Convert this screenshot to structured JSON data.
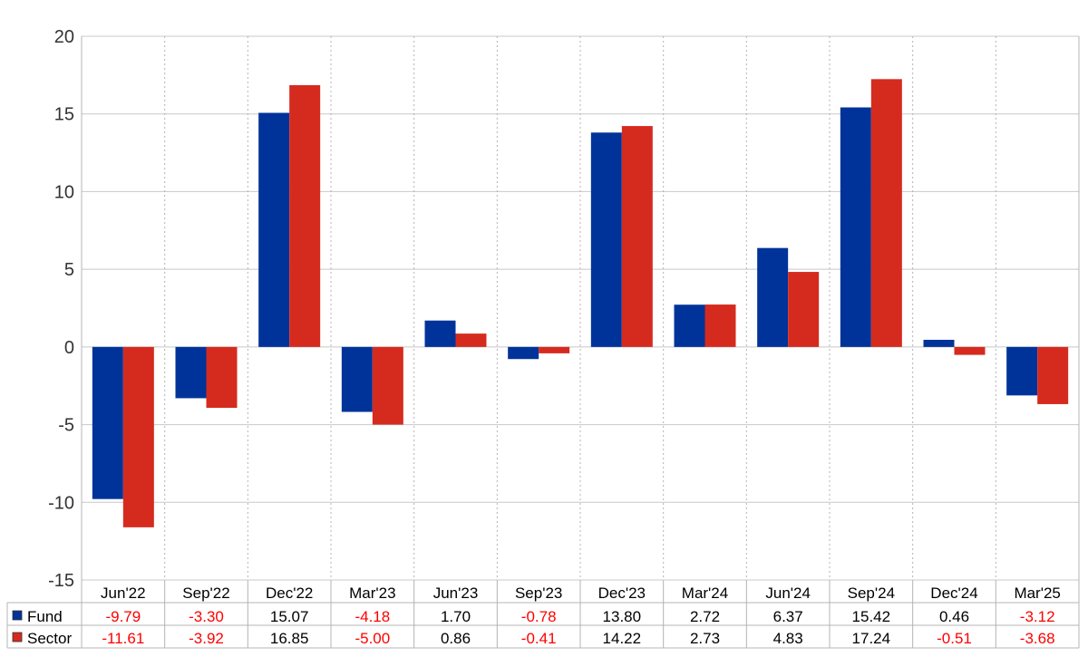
{
  "chart_data": {
    "type": "bar",
    "categories": [
      "Jun'22",
      "Sep'22",
      "Dec'22",
      "Mar'23",
      "Jun'23",
      "Sep'23",
      "Dec'23",
      "Mar'24",
      "Jun'24",
      "Sep'24",
      "Dec'24",
      "Mar'25"
    ],
    "series": [
      {
        "name": "Fund",
        "color": "#003399",
        "values": [
          -9.79,
          -3.3,
          15.07,
          -4.18,
          1.7,
          -0.78,
          13.8,
          2.72,
          6.37,
          15.42,
          0.46,
          -3.12
        ],
        "labels": [
          "-9.79",
          "-3.30",
          "15.07",
          "-4.18",
          "1.70",
          "-0.78",
          "13.80",
          "2.72",
          "6.37",
          "15.42",
          "0.46",
          "-3.12"
        ]
      },
      {
        "name": "Sector",
        "color": "#D52B1E",
        "values": [
          -11.61,
          -3.92,
          16.85,
          -5.0,
          0.86,
          -0.41,
          14.22,
          2.73,
          4.83,
          17.24,
          -0.51,
          -3.68
        ],
        "labels": [
          "-11.61",
          "-3.92",
          "16.85",
          "-5.00",
          "0.86",
          "-0.41",
          "14.22",
          "2.73",
          "4.83",
          "17.24",
          "-0.51",
          "-3.68"
        ]
      }
    ],
    "yticks": [
      "20",
      "15",
      "10",
      "5",
      "0",
      "-5",
      "-10",
      "-15"
    ],
    "ylim": [
      -15,
      20
    ],
    "grid": true,
    "legend_placement": "data-table-left",
    "negative_value_color": "#FF0000",
    "positive_value_color": "#000000"
  }
}
